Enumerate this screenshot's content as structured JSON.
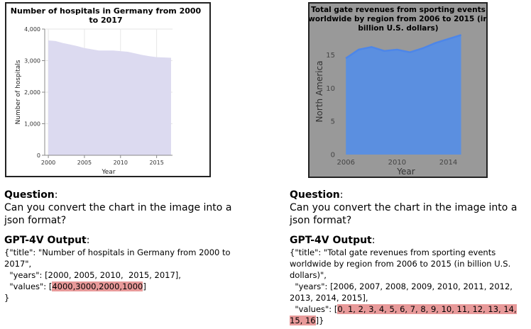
{
  "colors": {
    "left_fill": "#dcdaf0",
    "right_fill": "#5b8fe0",
    "right_line": "#4d86e8",
    "right_background": "#999999",
    "highlight": "#e89a9a"
  },
  "chart_data": [
    {
      "type": "area",
      "title": "Number of hospitals in Germany from 2000 to 2017",
      "title_lines": [
        "Number of hospitals in Germany from 2000",
        "to 2017"
      ],
      "xlabel": "Year",
      "ylabel": "Number of hospitals",
      "x": [
        2000,
        2001,
        2002,
        2003,
        2004,
        2005,
        2006,
        2007,
        2008,
        2009,
        2010,
        2011,
        2012,
        2013,
        2014,
        2015,
        2016,
        2017
      ],
      "values": [
        3640,
        3620,
        3560,
        3510,
        3460,
        3400,
        3360,
        3320,
        3320,
        3320,
        3300,
        3280,
        3230,
        3180,
        3140,
        3110,
        3100,
        3090
      ],
      "xlim": [
        1999.5,
        2017.2
      ],
      "ylim": [
        0,
        4000
      ],
      "x_ticks": [
        2000,
        2005,
        2010,
        2015
      ],
      "y_ticks": [
        0,
        1000,
        2000,
        3000,
        4000
      ],
      "y_tick_labels": [
        "0",
        "1,000",
        "2,000",
        "3,000",
        "4,000"
      ],
      "x_tick_labels": [
        "2000",
        "2005",
        "2010",
        "2015"
      ],
      "grid": true
    },
    {
      "type": "area",
      "title": "Total gate revenues from sporting events worldwide by region from 2006 to 2015 (in billion U.S. dollars)",
      "title_lines": [
        "Total gate revenues from sporting events",
        "worldwide by region from 2006 to 2015 (in",
        "billion U.S. dollars)"
      ],
      "xlabel": "Year",
      "ylabel": "North America",
      "x": [
        2006,
        2007,
        2008,
        2009,
        2010,
        2011,
        2012,
        2013,
        2014,
        2015
      ],
      "values": [
        14.5,
        15.8,
        16.2,
        15.6,
        15.8,
        15.4,
        16.0,
        16.8,
        17.4,
        18.0
      ],
      "xlim": [
        2005.6,
        2015.8
      ],
      "ylim": [
        0,
        19
      ],
      "x_ticks": [
        2006,
        2010,
        2014
      ],
      "x_tick_labels": [
        "2006",
        "2010",
        "2014"
      ],
      "y_ticks": [
        0,
        5,
        10,
        15
      ],
      "y_tick_labels": [
        "0",
        "5",
        "10",
        "15"
      ],
      "grid": false
    }
  ],
  "left_panel": {
    "question_label": "Question",
    "question_colon": ":",
    "question": "Can you convert the chart in the image into a json format?",
    "output_label": "GPT-4V Output",
    "output_colon": ":",
    "output_lines": [
      "{\"title\": \"Number of hospitals in Germany from 2000 to",
      "2017\",",
      "  \"years\": [2000, 2005, 2010,  2015, 2017],"
    ],
    "values_prefix": "  \"values\": [",
    "values_highlight": "4000,3000,2000,1000",
    "values_suffix": "]",
    "closing": "}"
  },
  "right_panel": {
    "question_label": "Question",
    "question_colon": ":",
    "question": "Can you convert the chart in the image into a json format?",
    "output_label": "GPT-4V Output",
    "output_colon": ":",
    "output_lines": [
      "{\"title\": \"Total gate revenues from sporting events",
      "worldwide by region from 2006 to 2015 (in billion U.S.",
      "dollars)\",",
      "  \"years\": [2006, 2007, 2008, 2009, 2010, 2011, 2012,",
      "2013, 2014, 2015],"
    ],
    "values_prefix": "  \"values\": [",
    "values_highlight_1": "0, 1, 2, 3, 4, 5, 6, 7, 8, 9, 10, 11, 12, 13, 14,",
    "values_highlight_2": "15, 16",
    "values_suffix": "]}"
  }
}
